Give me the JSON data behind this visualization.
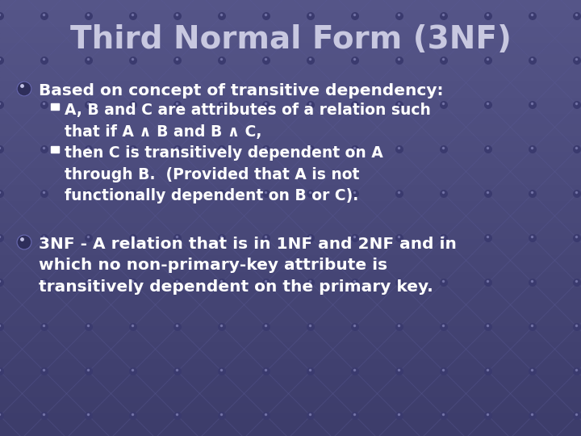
{
  "title": "Third Normal Form (3NF)",
  "title_color": "#c8c8e0",
  "title_fontsize": 28,
  "bg_color": "#4f5080",
  "text_color": "#ffffff",
  "bullet1": "Based on concept of transitive dependency:",
  "sub_bullet1": "A, B and C are attributes of a relation such\nthat if A ∧ B and B ∧ C,",
  "sub_bullet2": "then C is transitively dependent on A\nthrough B.  (Provided that A is not\nfunctionally dependent on B or C).",
  "bullet2": "3NF - A relation that is in 1NF and 2NF and in\nwhich no non-primary-key attribute is\ntransitively dependent on the primary key.",
  "font_family": "DejaVu Sans",
  "bullet_fontsize": 14.5,
  "sub_bullet_fontsize": 13.5,
  "grid_color": "#5a5a95",
  "dot_color": "#44447a"
}
